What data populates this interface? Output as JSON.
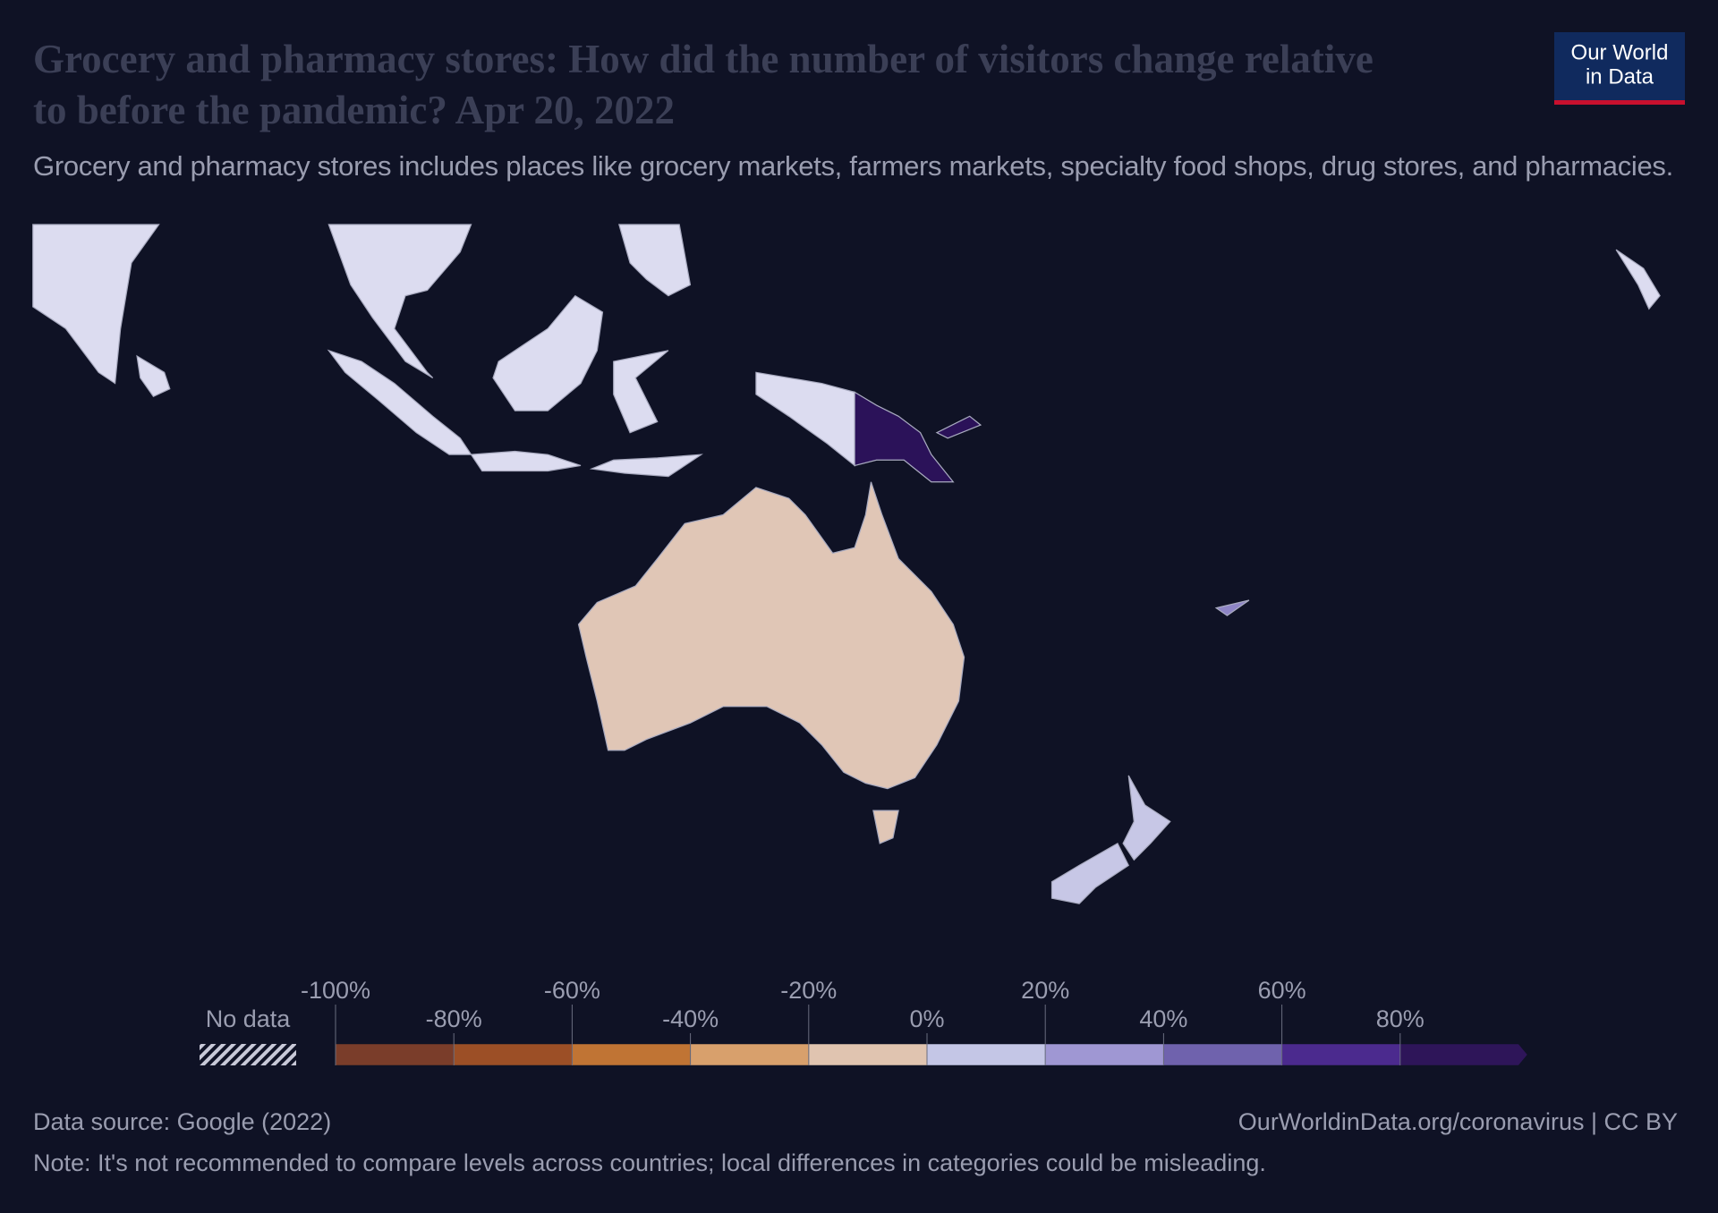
{
  "title": "Grocery and pharmacy stores: How did the number of visitors change relative to before the pandemic? Apr 20, 2022",
  "subtitle": "Grocery and pharmacy stores includes places like grocery markets, farmers markets, specialty food shops, drug stores, and pharmacies.",
  "logo": {
    "line1": "Our World",
    "line2": "in Data"
  },
  "legend": {
    "no_data_label": "No data",
    "xlim": [
      -100,
      100
    ],
    "xticks": [
      {
        "value": -100,
        "label": "-100%"
      },
      {
        "value": -80,
        "label": "-80%"
      },
      {
        "value": -60,
        "label": "-60%"
      },
      {
        "value": -40,
        "label": "-40%"
      },
      {
        "value": -20,
        "label": "-20%"
      },
      {
        "value": 0,
        "label": "0%"
      },
      {
        "value": 20,
        "label": "20%"
      },
      {
        "value": 40,
        "label": "40%"
      },
      {
        "value": 60,
        "label": "60%"
      },
      {
        "value": 80,
        "label": "80%"
      }
    ],
    "colors": [
      "#7a3d2a",
      "#9c4f26",
      "#c07434",
      "#d8a06c",
      "#e0c4b0",
      "#c4c6e6",
      "#9f97d3",
      "#6f62ad",
      "#4b2a8e",
      "#2e1559"
    ]
  },
  "footer": {
    "source": "Data source: Google (2022)",
    "url": "OurWorldinData.org/coronavirus | CC BY",
    "note": "Note: It's not recommended to compare levels across countries; local differences in categories could be misleading."
  }
}
